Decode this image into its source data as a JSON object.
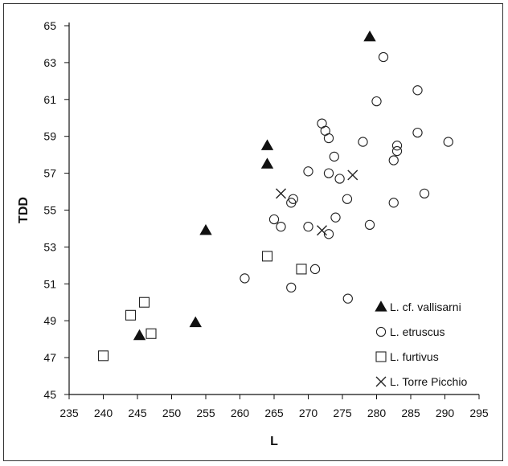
{
  "chart_data": {
    "type": "scatter",
    "xlabel": "L",
    "ylabel": "TDD",
    "xlim": [
      235,
      295
    ],
    "ylim": [
      45,
      65
    ],
    "xticks": [
      235,
      240,
      245,
      250,
      255,
      260,
      265,
      270,
      275,
      280,
      285,
      290,
      295
    ],
    "yticks": [
      45,
      47,
      49,
      51,
      53,
      55,
      57,
      59,
      61,
      63,
      65
    ],
    "grid": false,
    "legend_position": "bottom-right",
    "series": [
      {
        "name": "L. cf. vallisarni",
        "marker": "triangle-filled",
        "points": [
          [
            279,
            64.4
          ],
          [
            264,
            58.5
          ],
          [
            264,
            57.5
          ],
          [
            255,
            53.9
          ],
          [
            253.5,
            48.9
          ],
          [
            245.3,
            48.2
          ]
        ]
      },
      {
        "name": "L. etruscus",
        "marker": "circle-open",
        "points": [
          [
            281,
            63.3
          ],
          [
            286,
            61.5
          ],
          [
            280,
            60.9
          ],
          [
            272,
            59.7
          ],
          [
            272.5,
            59.3
          ],
          [
            273,
            58.9
          ],
          [
            278,
            58.7
          ],
          [
            283,
            58.5
          ],
          [
            290.5,
            58.7
          ],
          [
            286,
            59.2
          ],
          [
            283,
            58.2
          ],
          [
            282.5,
            57.7
          ],
          [
            273.8,
            57.9
          ],
          [
            270,
            57.1
          ],
          [
            273,
            57.0
          ],
          [
            274.6,
            56.7
          ],
          [
            287,
            55.9
          ],
          [
            267.8,
            55.6
          ],
          [
            267.5,
            55.4
          ],
          [
            275.7,
            55.6
          ],
          [
            282.5,
            55.4
          ],
          [
            265,
            54.5
          ],
          [
            266,
            54.1
          ],
          [
            270,
            54.1
          ],
          [
            274,
            54.6
          ],
          [
            273,
            53.7
          ],
          [
            279,
            54.2
          ],
          [
            260.7,
            51.3
          ],
          [
            267.5,
            50.8
          ],
          [
            271,
            51.8
          ],
          [
            275.8,
            50.2
          ]
        ]
      },
      {
        "name": "L. furtivus",
        "marker": "square-open",
        "points": [
          [
            264,
            52.5
          ],
          [
            269,
            51.8
          ],
          [
            246,
            50.0
          ],
          [
            244,
            49.3
          ],
          [
            247,
            48.3
          ],
          [
            240,
            47.1
          ]
        ]
      },
      {
        "name": "L. Torre Picchio",
        "marker": "x",
        "points": [
          [
            266,
            55.9
          ],
          [
            276.5,
            56.9
          ],
          [
            272,
            53.9
          ]
        ]
      }
    ]
  }
}
